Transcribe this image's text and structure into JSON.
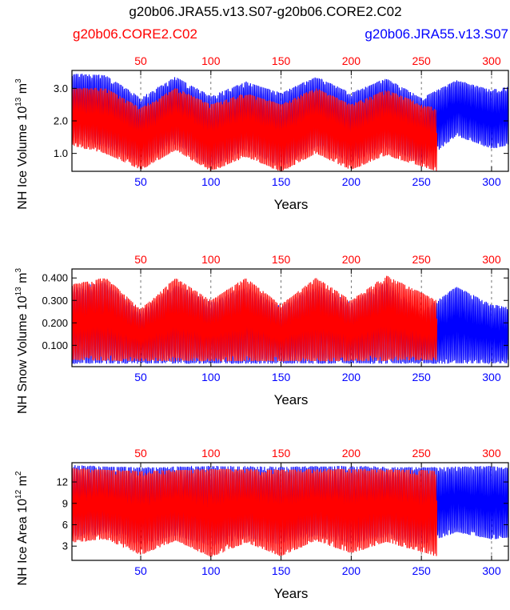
{
  "title": "g20b06.JRA55.v13.S07-g20b06.CORE2.C02",
  "legend": {
    "left": {
      "label": "g20b06.CORE2.C02",
      "color": "#ff0000"
    },
    "right": {
      "label": "g20b06.JRA55.v13.S07",
      "color": "#0000ff"
    }
  },
  "colors": {
    "core2": "#ff0000",
    "jra55": "#0000ff",
    "axis": "#000000"
  },
  "chart_data": [
    {
      "type": "line",
      "panel": "ice-volume",
      "ylabel": "NH Ice Volume 10",
      "ylabel_exp": "13",
      "ylabel_unit": " m",
      "ylabel_unit_exp": "3",
      "xlabel": "Years",
      "xlim": [
        1,
        312
      ],
      "ylim": [
        0.45,
        3.55
      ],
      "yticks": [
        "3.0",
        "2.0",
        "1.0"
      ],
      "ytick_values": [
        3.0,
        2.0,
        1.0
      ],
      "top_xticks": [
        "50",
        "100",
        "150",
        "200",
        "250",
        "300"
      ],
      "bottom_xticks": [
        "50",
        "100",
        "150",
        "200",
        "250",
        "300"
      ],
      "xtick_values": [
        50,
        100,
        150,
        200,
        250,
        300
      ],
      "series": [
        {
          "name": "g20b06.JRA55.v13.S07",
          "color": "#0000ff",
          "years": [
            1,
            312
          ],
          "max_env": [
            [
              1,
              3.45
            ],
            [
              25,
              3.4
            ],
            [
              50,
              2.7
            ],
            [
              75,
              3.35
            ],
            [
              100,
              2.75
            ],
            [
              125,
              3.2
            ],
            [
              150,
              2.85
            ],
            [
              175,
              3.35
            ],
            [
              200,
              2.85
            ],
            [
              225,
              3.3
            ],
            [
              250,
              2.7
            ],
            [
              275,
              3.25
            ],
            [
              300,
              2.95
            ],
            [
              312,
              3.05
            ]
          ],
          "min_env": [
            [
              1,
              1.5
            ],
            [
              25,
              1.2
            ],
            [
              50,
              0.75
            ],
            [
              75,
              1.3
            ],
            [
              100,
              0.6
            ],
            [
              125,
              1.1
            ],
            [
              150,
              0.6
            ],
            [
              175,
              1.2
            ],
            [
              200,
              0.75
            ],
            [
              225,
              1.2
            ],
            [
              250,
              0.7
            ],
            [
              275,
              1.55
            ],
            [
              300,
              1.15
            ],
            [
              312,
              1.25
            ]
          ]
        },
        {
          "name": "g20b06.CORE2.C02",
          "color": "#ff0000",
          "years": [
            1,
            261
          ],
          "max_env": [
            [
              1,
              3.0
            ],
            [
              25,
              3.0
            ],
            [
              50,
              2.4
            ],
            [
              75,
              3.0
            ],
            [
              100,
              2.5
            ],
            [
              125,
              2.85
            ],
            [
              150,
              2.5
            ],
            [
              175,
              3.0
            ],
            [
              200,
              2.5
            ],
            [
              225,
              2.95
            ],
            [
              261,
              2.35
            ]
          ],
          "min_env": [
            [
              1,
              1.25
            ],
            [
              25,
              1.0
            ],
            [
              50,
              0.5
            ],
            [
              75,
              1.1
            ],
            [
              100,
              0.45
            ],
            [
              125,
              0.9
            ],
            [
              150,
              0.45
            ],
            [
              175,
              1.0
            ],
            [
              200,
              0.5
            ],
            [
              225,
              0.95
            ],
            [
              261,
              0.45
            ]
          ]
        }
      ]
    },
    {
      "type": "line",
      "panel": "snow-volume",
      "ylabel": "NH Snow Volume 10",
      "ylabel_exp": "13",
      "ylabel_unit": " m",
      "ylabel_unit_exp": "3",
      "xlabel": "Years",
      "xlim": [
        1,
        312
      ],
      "ylim": [
        0.005,
        0.44
      ],
      "yticks": [
        "0.400",
        "0.300",
        "0.200",
        "0.100"
      ],
      "ytick_values": [
        0.4,
        0.3,
        0.2,
        0.1
      ],
      "top_xticks": [
        "50",
        "100",
        "150",
        "200",
        "250",
        "300"
      ],
      "bottom_xticks": [
        "50",
        "100",
        "150",
        "200",
        "250",
        "300"
      ],
      "xtick_values": [
        50,
        100,
        150,
        200,
        250,
        300
      ],
      "series": [
        {
          "name": "g20b06.JRA55.v13.S07",
          "color": "#0000ff",
          "years": [
            1,
            312
          ],
          "max_env": [
            [
              1,
              0.36
            ],
            [
              25,
              0.38
            ],
            [
              50,
              0.25
            ],
            [
              75,
              0.37
            ],
            [
              100,
              0.29
            ],
            [
              125,
              0.36
            ],
            [
              150,
              0.27
            ],
            [
              175,
              0.37
            ],
            [
              200,
              0.29
            ],
            [
              225,
              0.38
            ],
            [
              250,
              0.25
            ],
            [
              275,
              0.36
            ],
            [
              300,
              0.28
            ],
            [
              312,
              0.27
            ]
          ],
          "min_env": [
            [
              1,
              0.02
            ],
            [
              50,
              0.02
            ],
            [
              100,
              0.02
            ],
            [
              150,
              0.02
            ],
            [
              200,
              0.02
            ],
            [
              250,
              0.02
            ],
            [
              312,
              0.02
            ]
          ]
        },
        {
          "name": "g20b06.CORE2.C02",
          "color": "#ff0000",
          "years": [
            1,
            261
          ],
          "max_env": [
            [
              1,
              0.37
            ],
            [
              25,
              0.4
            ],
            [
              50,
              0.26
            ],
            [
              75,
              0.4
            ],
            [
              100,
              0.3
            ],
            [
              125,
              0.4
            ],
            [
              150,
              0.28
            ],
            [
              175,
              0.4
            ],
            [
              200,
              0.3
            ],
            [
              225,
              0.41
            ],
            [
              261,
              0.3
            ]
          ],
          "min_env": [
            [
              1,
              0.035
            ],
            [
              50,
              0.03
            ],
            [
              100,
              0.03
            ],
            [
              150,
              0.03
            ],
            [
              200,
              0.03
            ],
            [
              261,
              0.035
            ]
          ]
        }
      ]
    },
    {
      "type": "line",
      "panel": "ice-area",
      "ylabel": "NH Ice Area 10",
      "ylabel_exp": "12",
      "ylabel_unit": " m",
      "ylabel_unit_exp": "2",
      "xlabel": "Years",
      "xlim": [
        1,
        312
      ],
      "ylim": [
        1.0,
        14.7
      ],
      "yticks": [
        "12",
        "9",
        "6",
        "3"
      ],
      "ytick_values": [
        12,
        9,
        6,
        3
      ],
      "top_xticks": [
        "50",
        "100",
        "150",
        "200",
        "250",
        "300"
      ],
      "bottom_xticks": [
        "50",
        "100",
        "150",
        "200",
        "250",
        "300"
      ],
      "xtick_values": [
        50,
        100,
        150,
        200,
        250,
        300
      ],
      "series": [
        {
          "name": "g20b06.JRA55.v13.S07",
          "color": "#0000ff",
          "years": [
            1,
            312
          ],
          "max_env": [
            [
              1,
              14.3
            ],
            [
              50,
              14.0
            ],
            [
              100,
              14.2
            ],
            [
              150,
              14.1
            ],
            [
              200,
              14.2
            ],
            [
              250,
              14.0
            ],
            [
              300,
              14.2
            ],
            [
              312,
              14.0
            ]
          ],
          "min_env": [
            [
              1,
              4.2
            ],
            [
              25,
              4.8
            ],
            [
              50,
              3.2
            ],
            [
              75,
              4.5
            ],
            [
              100,
              3.0
            ],
            [
              125,
              4.2
            ],
            [
              150,
              3.2
            ],
            [
              175,
              4.5
            ],
            [
              200,
              3.4
            ],
            [
              225,
              4.3
            ],
            [
              250,
              3.2
            ],
            [
              275,
              5.0
            ],
            [
              300,
              4.0
            ],
            [
              312,
              4.2
            ]
          ]
        },
        {
          "name": "g20b06.CORE2.C02",
          "color": "#ff0000",
          "years": [
            1,
            261
          ],
          "max_env": [
            [
              1,
              13.9
            ],
            [
              50,
              13.5
            ],
            [
              100,
              13.8
            ],
            [
              150,
              13.7
            ],
            [
              200,
              13.8
            ],
            [
              261,
              13.6
            ]
          ],
          "min_env": [
            [
              1,
              3.5
            ],
            [
              25,
              4.0
            ],
            [
              50,
              1.8
            ],
            [
              75,
              3.8
            ],
            [
              100,
              1.5
            ],
            [
              125,
              3.5
            ],
            [
              150,
              1.6
            ],
            [
              175,
              3.8
            ],
            [
              200,
              2.0
            ],
            [
              225,
              3.6
            ],
            [
              261,
              1.6
            ]
          ]
        }
      ]
    }
  ]
}
